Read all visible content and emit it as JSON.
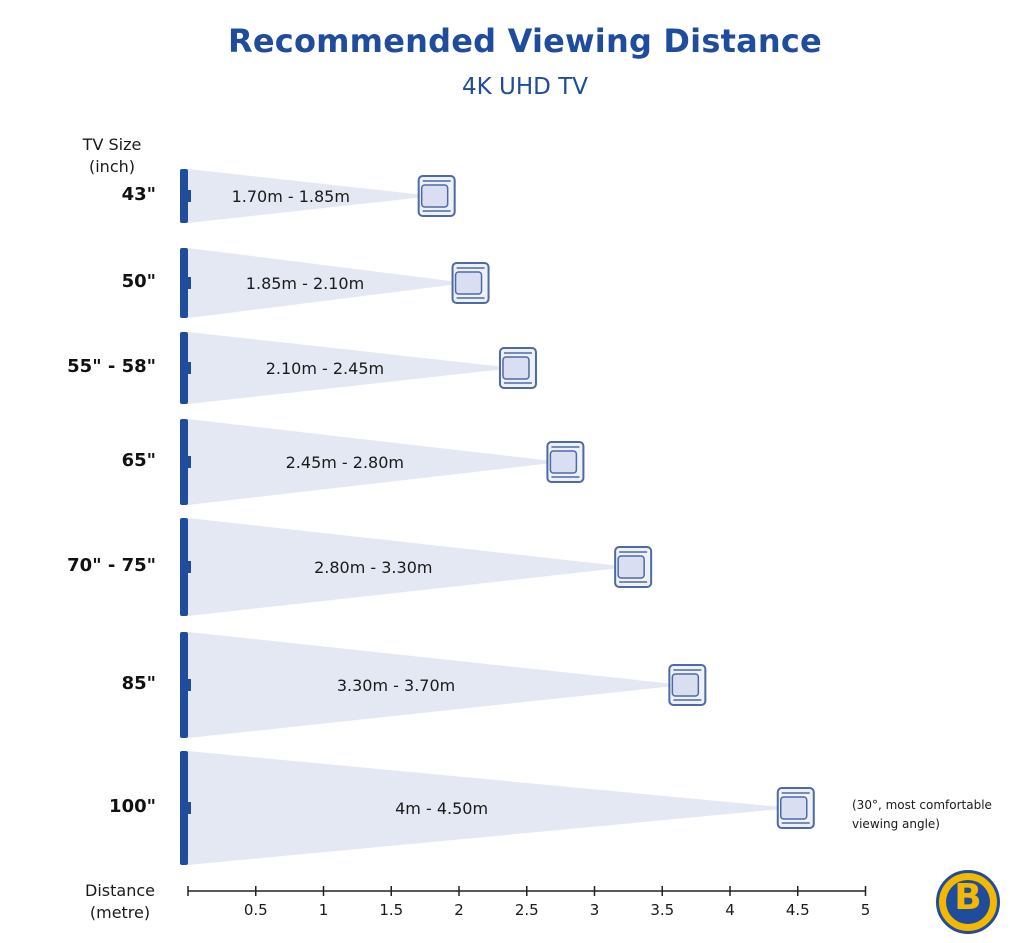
{
  "header": {
    "title": "Recommended Viewing Distance",
    "subtitle": "4K UHD TV"
  },
  "axes": {
    "y_label_line1": "TV Size",
    "y_label_line2": "(inch)",
    "x_label_line1": "Distance",
    "x_label_line2": "(metre)"
  },
  "note": {
    "line1": "(30°, most comfortable",
    "line2": "viewing angle)"
  },
  "colors": {
    "title": "#1f4c9c",
    "tv": "#1f4c9c",
    "beam": "#e3e8f3",
    "chair_stroke": "#4d6aa6",
    "chair_fill": "#eef1f8"
  },
  "chart_data": {
    "type": "bar",
    "title": "Recommended Viewing Distance",
    "subtitle": "4K UHD TV",
    "xlabel": "Distance (metre)",
    "ylabel": "TV Size (inch)",
    "xlim": [
      0,
      5
    ],
    "x_ticks": [
      "0.5",
      "1",
      "1.5",
      "2",
      "2.5",
      "3",
      "3.5",
      "4",
      "4.5",
      "5"
    ],
    "categories": [
      "43\"",
      "50\"",
      "55\" - 58\"",
      "65\"",
      "70\" - 75\"",
      "85\"",
      "100\""
    ],
    "ranges": [
      {
        "size": "43\"",
        "min": 1.7,
        "max": 1.85,
        "label": "1.70m - 1.85m"
      },
      {
        "size": "50\"",
        "min": 1.85,
        "max": 2.1,
        "label": "1.85m - 2.10m"
      },
      {
        "size": "55\" - 58\"",
        "min": 2.1,
        "max": 2.45,
        "label": "2.10m - 2.45m"
      },
      {
        "size": "65\"",
        "min": 2.45,
        "max": 2.8,
        "label": "2.45m - 2.80m"
      },
      {
        "size": "70\" - 75\"",
        "min": 2.8,
        "max": 3.3,
        "label": "2.80m - 3.30m"
      },
      {
        "size": "85\"",
        "min": 3.3,
        "max": 3.7,
        "label": "3.30m - 3.70m"
      },
      {
        "size": "100\"",
        "min": 4.0,
        "max": 4.5,
        "label": "4m - 4.50m"
      }
    ],
    "grid": false,
    "legend": "none"
  }
}
